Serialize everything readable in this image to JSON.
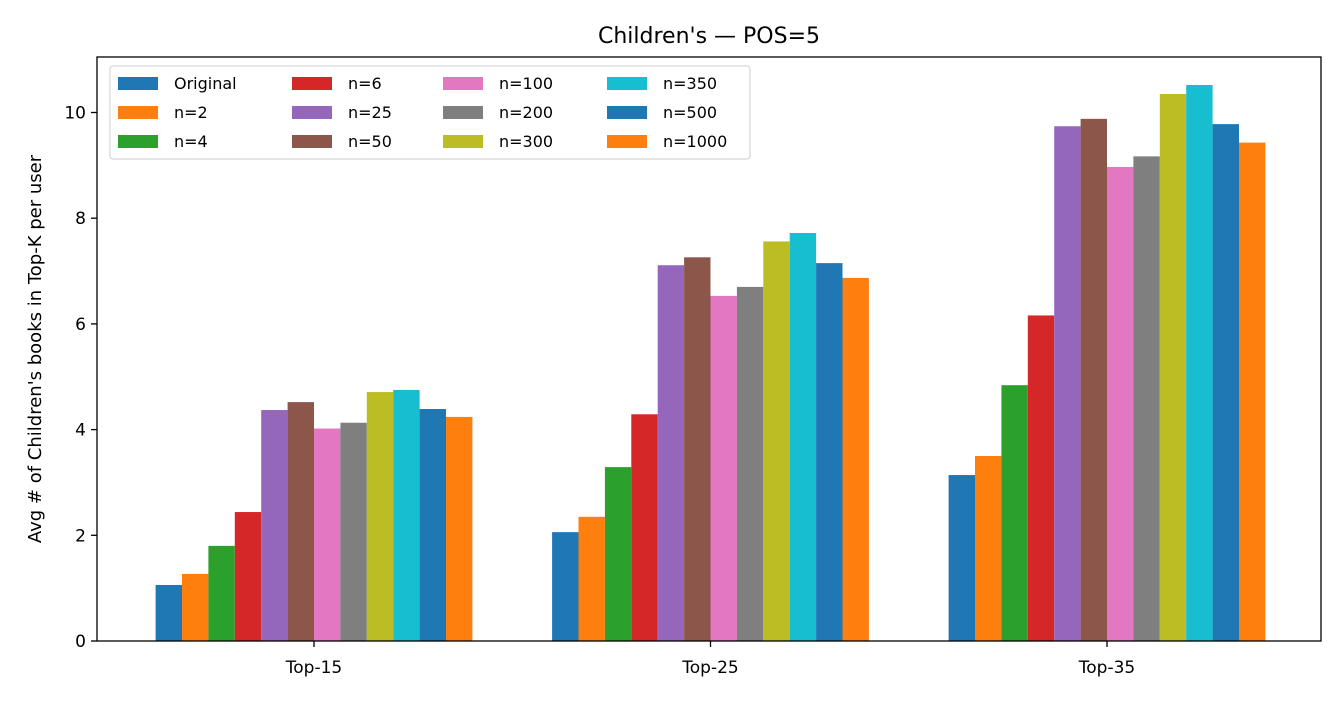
{
  "chart_data": {
    "type": "bar",
    "title": "Children's — POS=5",
    "xlabel": "",
    "ylabel": "Avg # of Children's books in Top-K per user",
    "categories": [
      "Top-15",
      "Top-25",
      "Top-35"
    ],
    "ylim": [
      0,
      11.05
    ],
    "yticks": [
      0,
      2,
      4,
      6,
      8,
      10
    ],
    "grid": false,
    "legend_position": "upper-left",
    "legend_columns": 4,
    "series": [
      {
        "name": "Original",
        "color": "#1f77b4",
        "values": [
          1.06,
          2.06,
          3.14
        ]
      },
      {
        "name": "n=2",
        "color": "#ff7f0e",
        "values": [
          1.27,
          2.35,
          3.5
        ]
      },
      {
        "name": "n=4",
        "color": "#2ca02c",
        "values": [
          1.8,
          3.29,
          4.84
        ]
      },
      {
        "name": "n=6",
        "color": "#d62728",
        "values": [
          2.44,
          4.29,
          6.16
        ]
      },
      {
        "name": "n=25",
        "color": "#9467bd",
        "values": [
          4.37,
          7.11,
          9.74
        ]
      },
      {
        "name": "n=50",
        "color": "#8c564b",
        "values": [
          4.52,
          7.26,
          9.88
        ]
      },
      {
        "name": "n=100",
        "color": "#e377c2",
        "values": [
          4.02,
          6.53,
          8.97
        ]
      },
      {
        "name": "n=200",
        "color": "#7f7f7f",
        "values": [
          4.13,
          6.7,
          9.17
        ]
      },
      {
        "name": "n=300",
        "color": "#bcbd22",
        "values": [
          4.71,
          7.56,
          10.35
        ]
      },
      {
        "name": "n=350",
        "color": "#17becf",
        "values": [
          4.75,
          7.72,
          10.52
        ]
      },
      {
        "name": "n=500",
        "color": "#1f77b4",
        "values": [
          4.39,
          7.15,
          9.78
        ]
      },
      {
        "name": "n=1000",
        "color": "#ff7f0e",
        "values": [
          4.24,
          6.87,
          9.43
        ]
      }
    ]
  }
}
